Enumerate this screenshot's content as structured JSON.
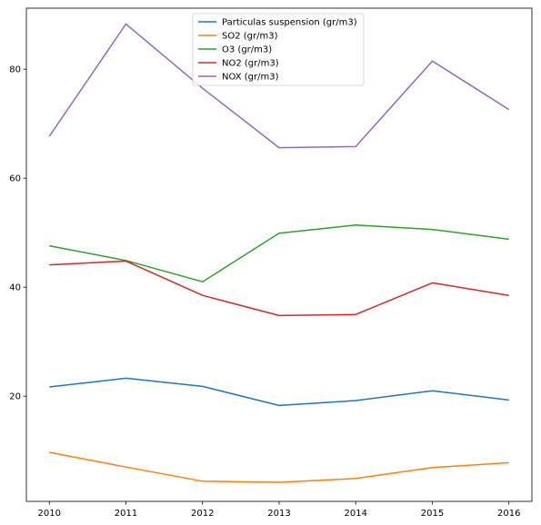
{
  "chart_data": {
    "type": "line",
    "title": "",
    "xlabel": "",
    "ylabel": "",
    "x": [
      2010,
      2011,
      2012,
      2013,
      2014,
      2015,
      2016
    ],
    "xlim": [
      2009.7,
      2016.3
    ],
    "ylim": [
      0.7,
      91.2
    ],
    "yticks": [
      20,
      40,
      60,
      80
    ],
    "grid": false,
    "legend_position": "top-center",
    "series": [
      {
        "name": "Particulas suspension  (gr/m3)",
        "color": "#1f77b4",
        "values": [
          21.7,
          23.3,
          21.8,
          18.3,
          19.2,
          21.0,
          19.3
        ]
      },
      {
        "name": "SO2 (gr/m3)",
        "color": "#ff7f0e",
        "values": [
          9.7,
          7.0,
          4.4,
          4.2,
          4.9,
          6.9,
          7.8
        ]
      },
      {
        "name": "O3 (gr/m3)",
        "color": "#2ca02c",
        "values": [
          47.6,
          44.9,
          41.0,
          49.9,
          51.4,
          50.6,
          48.8
        ]
      },
      {
        "name": "NO2 (gr/m3)",
        "color": "#d62728",
        "values": [
          44.1,
          44.8,
          38.5,
          34.8,
          35.0,
          40.8,
          38.5
        ]
      },
      {
        "name": "NOX (gr/m3)",
        "color": "#9467bd",
        "values": [
          67.7,
          88.3,
          76.5,
          65.6,
          65.8,
          81.5,
          72.6
        ]
      }
    ]
  }
}
